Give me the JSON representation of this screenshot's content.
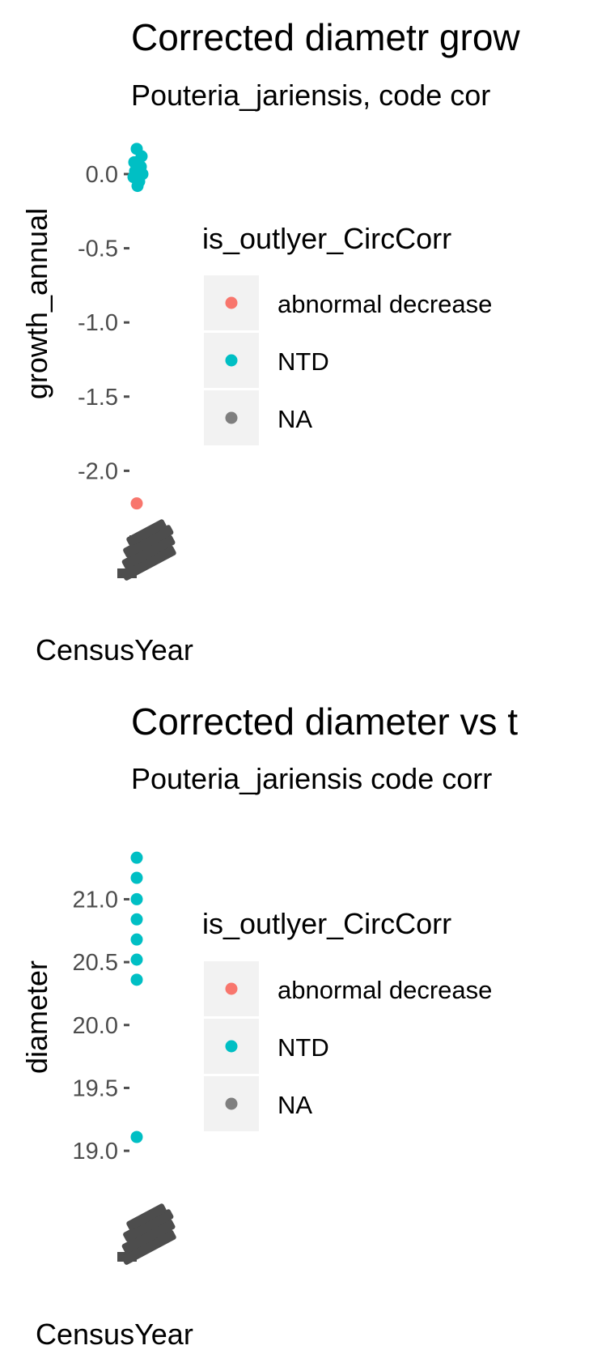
{
  "colors": {
    "abnormal_decrease": "#F8766D",
    "NTD": "#00BFC4",
    "NA": "#7F7F7F",
    "axis_text": "#4D4D4D",
    "overlap_text": "#4D4D4D",
    "legend_key_bg": "#F2F2F2"
  },
  "chart_data": [
    {
      "type": "scatter",
      "title": "Corrected diametr grow",
      "subtitle": "Pouteria_jariensis, code cor",
      "xlabel": "CensusYear",
      "ylabel": "growth_annual",
      "ylim": [
        -2.32,
        0.18
      ],
      "yticks": [
        0.0,
        -0.5,
        -1.0,
        -1.5,
        -2.0
      ],
      "ytick_labels": [
        "0.0",
        "-0.5",
        "-1.0",
        "-1.5",
        "-2.0"
      ],
      "grid": false,
      "x_tick_labels_overlapping": true,
      "legend": {
        "title": "is_outlyer_CircCorr",
        "position": "right",
        "entries": [
          {
            "label": "abnormal decrease",
            "color_key": "abnormal_decrease"
          },
          {
            "label": "NTD",
            "color_key": "NTD"
          },
          {
            "label": "NA",
            "color_key": "NA"
          }
        ]
      },
      "series": [
        {
          "name": "NTD",
          "color_key": "NTD",
          "y": [
            0.17,
            0.12,
            0.08,
            0.05,
            0.02,
            0.0,
            -0.02,
            -0.05,
            -0.08
          ]
        },
        {
          "name": "abnormal decrease",
          "color_key": "abnormal_decrease",
          "y": [
            -2.22
          ]
        }
      ]
    },
    {
      "type": "scatter",
      "title": "Corrected diameter vs t",
      "subtitle": "Pouteria_jariensis code corr",
      "xlabel": "CensusYear",
      "ylabel": "diameter",
      "ylim": [
        18.55,
        21.55
      ],
      "yticks": [
        21.0,
        20.5,
        20.0,
        19.5,
        19.0
      ],
      "ytick_labels": [
        "21.0",
        "20.5",
        "20.0",
        "19.5",
        "19.0"
      ],
      "grid": false,
      "x_tick_labels_overlapping": true,
      "legend": {
        "title": "is_outlyer_CircCorr",
        "position": "right",
        "entries": [
          {
            "label": "abnormal decrease",
            "color_key": "abnormal_decrease"
          },
          {
            "label": "NTD",
            "color_key": "NTD"
          },
          {
            "label": "NA",
            "color_key": "NA"
          }
        ]
      },
      "series": [
        {
          "name": "NTD",
          "color_key": "NTD",
          "y": [
            21.33,
            21.17,
            21.0,
            20.84,
            20.68,
            20.52,
            20.36,
            19.11
          ]
        }
      ]
    }
  ]
}
